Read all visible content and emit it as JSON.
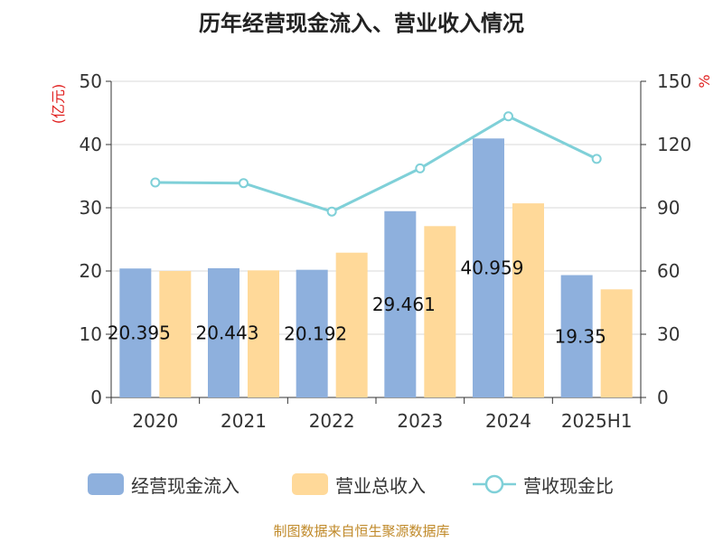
{
  "title": "历年经营现金流入、营业收入情况",
  "footer": "制图数据来自恒生聚源数据库",
  "chart_data": {
    "type": "bar",
    "categories": [
      "2020",
      "2021",
      "2022",
      "2023",
      "2024",
      "2025H1"
    ],
    "series": [
      {
        "name": "经营现金流入",
        "kind": "bar",
        "axis": "left",
        "color": "#8eb0dd",
        "values": [
          20.395,
          20.443,
          20.192,
          29.461,
          40.959,
          19.35
        ],
        "data_labels": [
          "20.395",
          "20.443",
          "20.192",
          "29.461",
          "40.959",
          "19.35"
        ]
      },
      {
        "name": "营业总收入",
        "kind": "bar",
        "axis": "left",
        "color": "#ffd999",
        "values": [
          20.0,
          20.1,
          22.9,
          27.1,
          30.7,
          17.1
        ]
      },
      {
        "name": "营收现金比",
        "kind": "line",
        "axis": "right",
        "color": "#7fd0d8",
        "values": [
          102,
          101.7,
          88.2,
          108.7,
          133.4,
          113.2
        ]
      }
    ],
    "y_left": {
      "label": "(亿元)",
      "min": 0,
      "max": 50,
      "ticks": [
        0,
        10,
        20,
        30,
        40,
        50
      ]
    },
    "y_right": {
      "label": "%",
      "min": 0,
      "max": 150,
      "ticks": [
        0,
        30,
        60,
        90,
        120,
        150
      ]
    },
    "grid": true,
    "legend_position": "bottom"
  }
}
